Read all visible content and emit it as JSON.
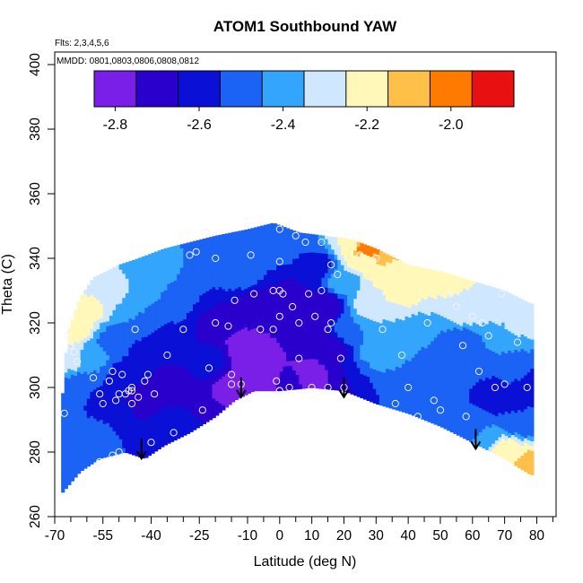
{
  "chart_data": {
    "type": "heatmap",
    "title": "ATOM1 Southbound YAW",
    "annotations": {
      "flights": "Flts: 2,3,4,5,6",
      "dates": "MMDD: 0801,0803,0806,0808,0812"
    },
    "xlabel": "Latitude (deg N)",
    "ylabel": "Theta (C)",
    "xlim": [
      -70,
      85
    ],
    "ylim": [
      260,
      403
    ],
    "x_ticks": [
      -70,
      -55,
      -40,
      -25,
      -10,
      0,
      10,
      20,
      30,
      40,
      50,
      60,
      70,
      80
    ],
    "x_tick_labels": [
      "-70",
      "-55",
      "-40",
      "-25",
      "-10",
      "0",
      "10",
      "20",
      "30",
      "40",
      "50",
      "60",
      "70",
      "80"
    ],
    "x_minor_ticks": [
      -65,
      -60,
      -50,
      -45,
      -35,
      -30,
      -20,
      -15,
      -5,
      5,
      15,
      25,
      35,
      45,
      55,
      65,
      75,
      85
    ],
    "y_ticks": [
      260,
      280,
      300,
      320,
      340,
      360,
      380,
      400
    ],
    "y_tick_labels": [
      "260",
      "280",
      "300",
      "320",
      "340",
      "360",
      "380",
      "400"
    ],
    "colorbar": {
      "range": [
        -2.85,
        -1.85
      ],
      "ticks": [
        -2.8,
        -2.6,
        -2.4,
        -2.2,
        -2.0
      ],
      "tick_labels": [
        "-2.8",
        "-2.6",
        "-2.4",
        "-2.2",
        "-2.0"
      ],
      "bins": [
        -2.85,
        -2.75,
        -2.65,
        -2.55,
        -2.45,
        -2.35,
        -2.25,
        -2.15,
        -2.05,
        -1.95,
        -1.85
      ],
      "colors": [
        "#7a1fe8",
        "#2a00cc",
        "#0a10d6",
        "#1b63f4",
        "#33a6fc",
        "#cfe8ff",
        "#fff8b8",
        "#ffc04a",
        "#ff7a00",
        "#e81010",
        "#a81818"
      ]
    },
    "domain": {
      "top_boundary": [
        [
          -68,
          292
        ],
        [
          -66,
          317
        ],
        [
          -62,
          328
        ],
        [
          -58,
          334
        ],
        [
          -50,
          338
        ],
        [
          -44,
          340
        ],
        [
          -36,
          343
        ],
        [
          -28,
          345
        ],
        [
          -20,
          347
        ],
        [
          -10,
          349
        ],
        [
          -2,
          351
        ],
        [
          6,
          348
        ],
        [
          14,
          347
        ],
        [
          22,
          346
        ],
        [
          30,
          343
        ],
        [
          40,
          338
        ],
        [
          50,
          336
        ],
        [
          60,
          333
        ],
        [
          70,
          330
        ],
        [
          78,
          326
        ]
      ],
      "bottom_boundary": [
        [
          -68,
          267
        ],
        [
          -62,
          274
        ],
        [
          -56,
          278
        ],
        [
          -48,
          280
        ],
        [
          -42,
          278
        ],
        [
          -36,
          282
        ],
        [
          -28,
          286
        ],
        [
          -20,
          291
        ],
        [
          -14,
          296
        ],
        [
          -8,
          299
        ],
        [
          0,
          299
        ],
        [
          10,
          300
        ],
        [
          20,
          299
        ],
        [
          30,
          295
        ],
        [
          40,
          292
        ],
        [
          50,
          288
        ],
        [
          60,
          283
        ],
        [
          70,
          278
        ],
        [
          78,
          273
        ]
      ]
    },
    "field_points": [
      [
        -66,
        297,
        -2.45
      ],
      [
        -66,
        310,
        -2.25
      ],
      [
        -64,
        318,
        -2.2
      ],
      [
        -62,
        300,
        -2.5
      ],
      [
        -60,
        325,
        -2.2
      ],
      [
        -58,
        285,
        -2.5
      ],
      [
        -58,
        310,
        -2.4
      ],
      [
        -56,
        296,
        -2.6
      ],
      [
        -55,
        330,
        -2.3
      ],
      [
        -52,
        314,
        -2.5
      ],
      [
        -50,
        293,
        -2.6
      ],
      [
        -48,
        304,
        -2.6
      ],
      [
        -46,
        334,
        -2.35
      ],
      [
        -44,
        283,
        -2.55
      ],
      [
        -44,
        322,
        -2.45
      ],
      [
        -42,
        296,
        -2.75
      ],
      [
        -40,
        310,
        -2.65
      ],
      [
        -38,
        338,
        -2.4
      ],
      [
        -36,
        290,
        -2.6
      ],
      [
        -35,
        325,
        -2.45
      ],
      [
        -33,
        300,
        -2.7
      ],
      [
        -30,
        316,
        -2.65
      ],
      [
        -28,
        340,
        -2.45
      ],
      [
        -27,
        291,
        -2.65
      ],
      [
        -25,
        330,
        -2.55
      ],
      [
        -22,
        308,
        -2.6
      ],
      [
        -20,
        344,
        -2.5
      ],
      [
        -18,
        320,
        -2.75
      ],
      [
        -15,
        300,
        -2.8
      ],
      [
        -12,
        336,
        -2.5
      ],
      [
        -10,
        311,
        -2.85
      ],
      [
        -8,
        346,
        -2.45
      ],
      [
        -6,
        325,
        -2.7
      ],
      [
        -4,
        302,
        -2.8
      ],
      [
        -2,
        340,
        -2.55
      ],
      [
        0,
        313,
        -2.75
      ],
      [
        2,
        301,
        -2.72
      ],
      [
        3,
        328,
        -2.7
      ],
      [
        5,
        347,
        -2.5
      ],
      [
        8,
        318,
        -2.75
      ],
      [
        10,
        304,
        -2.78
      ],
      [
        12,
        338,
        -2.6
      ],
      [
        14,
        325,
        -2.75
      ],
      [
        16,
        312,
        -2.72
      ],
      [
        18,
        302,
        -2.75
      ],
      [
        20,
        333,
        -2.4
      ],
      [
        22,
        345,
        -2.25
      ],
      [
        22,
        318,
        -2.45
      ],
      [
        24,
        304,
        -2.55
      ],
      [
        26,
        340,
        -2.2
      ],
      [
        27,
        343,
        -1.95
      ],
      [
        28,
        326,
        -2.3
      ],
      [
        30,
        310,
        -2.4
      ],
      [
        32,
        338,
        -2.15
      ],
      [
        34,
        297,
        -2.55
      ],
      [
        36,
        318,
        -2.35
      ],
      [
        38,
        330,
        -2.2
      ],
      [
        40,
        305,
        -2.45
      ],
      [
        42,
        337,
        -2.15
      ],
      [
        44,
        293,
        -2.55
      ],
      [
        46,
        318,
        -2.45
      ],
      [
        48,
        328,
        -2.25
      ],
      [
        50,
        306,
        -2.5
      ],
      [
        52,
        334,
        -2.2
      ],
      [
        54,
        290,
        -2.55
      ],
      [
        56,
        314,
        -2.5
      ],
      [
        58,
        324,
        -2.3
      ],
      [
        60,
        300,
        -2.55
      ],
      [
        62,
        284,
        -2.45
      ],
      [
        64,
        312,
        -2.45
      ],
      [
        66,
        329,
        -2.25
      ],
      [
        68,
        298,
        -2.6
      ],
      [
        70,
        280,
        -2.2
      ],
      [
        72,
        318,
        -2.35
      ],
      [
        74,
        305,
        -2.5
      ],
      [
        76,
        290,
        -2.55
      ],
      [
        78,
        276,
        -2.1
      ],
      [
        78,
        322,
        -2.3
      ],
      [
        77,
        302,
        -2.6
      ]
    ],
    "observations": [
      [
        -67,
        292
      ],
      [
        -66,
        316
      ],
      [
        -65,
        313
      ],
      [
        -64,
        311
      ],
      [
        -63,
        308
      ],
      [
        -58,
        303
      ],
      [
        -56,
        298
      ],
      [
        -56,
        277
      ],
      [
        -55,
        295
      ],
      [
        -53,
        302
      ],
      [
        -52,
        305
      ],
      [
        -52,
        279
      ],
      [
        -51,
        296
      ],
      [
        -50,
        280
      ],
      [
        -50,
        298
      ],
      [
        -49,
        304
      ],
      [
        -48,
        298
      ],
      [
        -47,
        299
      ],
      [
        -46,
        299
      ],
      [
        -46,
        295
      ],
      [
        -46,
        300
      ],
      [
        -44,
        297
      ],
      [
        -45,
        318
      ],
      [
        -42,
        302
      ],
      [
        -41,
        304
      ],
      [
        -40,
        283
      ],
      [
        -39,
        298
      ],
      [
        -35,
        310
      ],
      [
        -33,
        286
      ],
      [
        -30,
        318
      ],
      [
        -28,
        341
      ],
      [
        -26,
        342
      ],
      [
        -24,
        293
      ],
      [
        -23,
        348
      ],
      [
        -22,
        306
      ],
      [
        -20,
        320
      ],
      [
        -20,
        340
      ],
      [
        -16,
        319
      ],
      [
        -15,
        301
      ],
      [
        -15,
        304
      ],
      [
        -14,
        327
      ],
      [
        -12,
        301
      ],
      [
        -9,
        341
      ],
      [
        -8,
        329
      ],
      [
        -6,
        318
      ],
      [
        -2,
        330
      ],
      [
        -2,
        318
      ],
      [
        -1,
        302
      ],
      [
        0,
        349
      ],
      [
        0,
        339
      ],
      [
        0,
        330
      ],
      [
        0,
        322
      ],
      [
        0,
        299
      ],
      [
        0,
        299
      ],
      [
        1,
        329
      ],
      [
        3,
        300
      ],
      [
        4,
        325
      ],
      [
        5,
        347
      ],
      [
        6,
        320
      ],
      [
        6,
        309
      ],
      [
        8,
        345
      ],
      [
        9,
        329
      ],
      [
        10,
        300
      ],
      [
        11,
        322
      ],
      [
        13,
        330
      ],
      [
        13,
        345
      ],
      [
        15,
        300
      ],
      [
        15,
        318
      ],
      [
        16,
        320
      ],
      [
        16,
        338
      ],
      [
        18,
        335
      ],
      [
        19,
        309
      ],
      [
        20,
        300
      ],
      [
        25,
        341
      ],
      [
        30,
        340
      ],
      [
        32,
        318
      ],
      [
        36,
        295
      ],
      [
        38,
        310
      ],
      [
        40,
        300
      ],
      [
        43,
        291
      ],
      [
        46,
        320
      ],
      [
        48,
        296
      ],
      [
        50,
        293
      ],
      [
        53,
        329
      ],
      [
        55,
        325
      ],
      [
        57,
        313
      ],
      [
        58,
        291
      ],
      [
        60,
        322
      ],
      [
        62,
        305
      ],
      [
        63,
        320
      ],
      [
        65,
        316
      ],
      [
        67,
        300
      ],
      [
        69,
        329
      ],
      [
        70,
        301
      ],
      [
        74,
        314
      ],
      [
        77,
        300
      ]
    ],
    "arrows": [
      [
        -43,
        278
      ],
      [
        -12,
        297
      ],
      [
        20,
        297
      ],
      [
        61,
        281
      ]
    ],
    "grid": false,
    "legend": "colorbar inside plot, top"
  }
}
